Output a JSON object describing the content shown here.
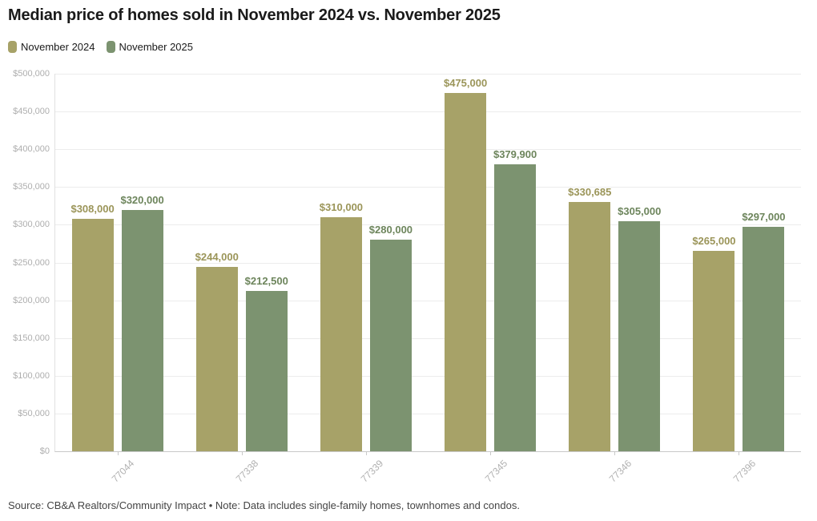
{
  "page": {
    "title": "Median price of homes sold in November 2024 vs. November 2025",
    "footer": "Source: CB&A Realtors/Community Impact • Note: Data includes single-family homes, townhomes and condos."
  },
  "colors": {
    "background": "#ffffff",
    "title_text": "#1a1a1a",
    "grid": "#ececec",
    "axis": "#c9c9c9",
    "tick_text": "#b0b0b0",
    "footer_text": "#444444"
  },
  "chart_data": {
    "type": "bar",
    "title": "Median price of homes sold in November 2024 vs. November 2025",
    "categories": [
      "77044",
      "77338",
      "77339",
      "77345",
      "77346",
      "77396"
    ],
    "series": [
      {
        "name": "November 2024",
        "color": "#a7a268",
        "label_color": "#9b9559",
        "values": [
          308000,
          244000,
          310000,
          475000,
          330685,
          265000
        ],
        "labels": [
          "$308,000",
          "$244,000",
          "$310,000",
          "$475,000",
          "$330,685",
          "$265,000"
        ]
      },
      {
        "name": "November 2025",
        "color": "#7c9370",
        "label_color": "#6d855c",
        "values": [
          320000,
          212500,
          280000,
          379900,
          305000,
          297000
        ],
        "labels": [
          "$320,000",
          "$212,500",
          "$280,000",
          "$379,900",
          "$305,000",
          "$297,000"
        ]
      }
    ],
    "xlabel": "",
    "ylabel": "",
    "ylim": [
      0,
      500000
    ],
    "yticks": [
      {
        "value": 0,
        "label": "$0"
      },
      {
        "value": 50000,
        "label": "$50,000"
      },
      {
        "value": 100000,
        "label": "$100,000"
      },
      {
        "value": 150000,
        "label": "$150,000"
      },
      {
        "value": 200000,
        "label": "$200,000"
      },
      {
        "value": 250000,
        "label": "$250,000"
      },
      {
        "value": 300000,
        "label": "$300,000"
      },
      {
        "value": 350000,
        "label": "$350,000"
      },
      {
        "value": 400000,
        "label": "$400,000"
      },
      {
        "value": 450000,
        "label": "$450,000"
      },
      {
        "value": 500000,
        "label": "$500,000"
      }
    ],
    "grid": true,
    "legend_position": "top-left"
  }
}
